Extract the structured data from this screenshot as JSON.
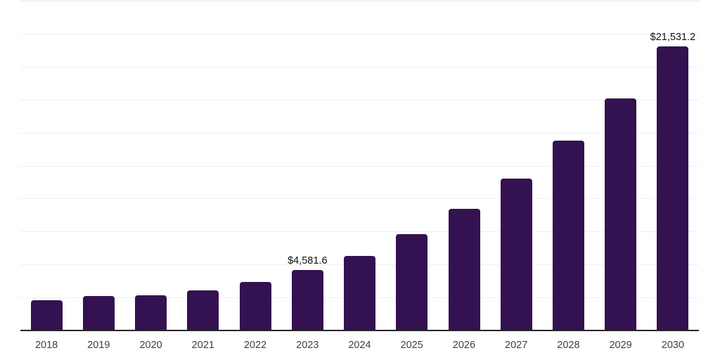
{
  "chart_data": {
    "type": "bar",
    "title": "",
    "xlabel": "",
    "ylabel": "",
    "categories": [
      "2018",
      "2019",
      "2020",
      "2021",
      "2022",
      "2023",
      "2024",
      "2025",
      "2026",
      "2027",
      "2028",
      "2029",
      "2030"
    ],
    "values": [
      2300,
      2590,
      2680,
      3060,
      3690,
      4581.6,
      5650,
      7300,
      9220,
      11500,
      14380,
      17570,
      21531.2
    ],
    "value_labels": {
      "2023": "$4,581.6",
      "2030": "$21,531.2"
    },
    "ylim": [
      0,
      25000
    ],
    "gridline_step": 2500,
    "grid": true,
    "legend": false,
    "colors": {
      "bar": "#341150",
      "axis_line": "#262626",
      "gridline": "#efefef",
      "value_label_text": "#111111",
      "tick_label_text": "#404040"
    }
  }
}
